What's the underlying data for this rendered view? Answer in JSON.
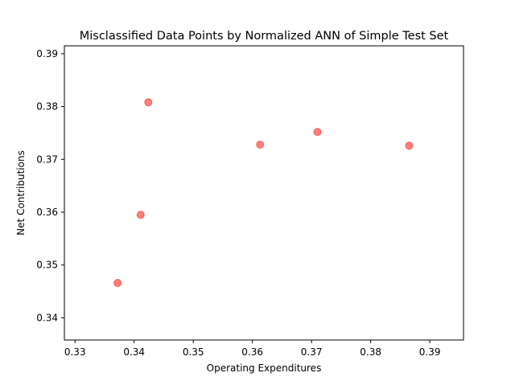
{
  "chart_data": {
    "type": "scatter",
    "title": "Misclassified Data Points by Normalized ANN of Simple Test Set",
    "xlabel": "Operating Expenditures",
    "ylabel": "Net Contributions",
    "xlim": [
      0.3282,
      0.3957
    ],
    "ylim": [
      0.3358,
      0.3915
    ],
    "xticks": [
      0.33,
      0.34,
      0.35,
      0.36,
      0.37,
      0.38,
      0.39
    ],
    "xtick_labels": [
      "0.33",
      "0.34",
      "0.35",
      "0.36",
      "0.37",
      "0.38",
      "0.39"
    ],
    "yticks": [
      0.34,
      0.35,
      0.36,
      0.37,
      0.38,
      0.39
    ],
    "ytick_labels": [
      "0.34",
      "0.35",
      "0.36",
      "0.37",
      "0.38",
      "0.39"
    ],
    "grid": false,
    "marker_color": "#ff0000",
    "marker_opacity": 0.5,
    "points": [
      {
        "x": 0.3372,
        "y": 0.3466
      },
      {
        "x": 0.3411,
        "y": 0.3595
      },
      {
        "x": 0.3424,
        "y": 0.3808
      },
      {
        "x": 0.3613,
        "y": 0.3728
      },
      {
        "x": 0.371,
        "y": 0.3752
      },
      {
        "x": 0.3865,
        "y": 0.3726
      }
    ]
  }
}
